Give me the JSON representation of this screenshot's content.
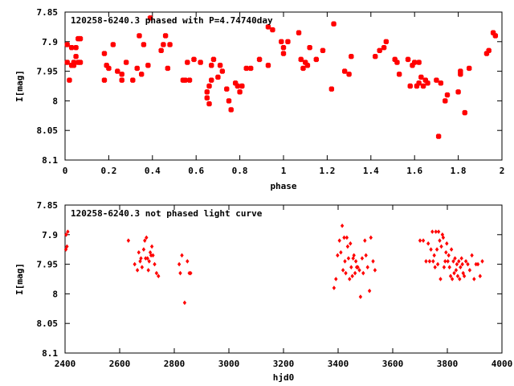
{
  "chart_data": [
    {
      "type": "scatter",
      "title": "120258-6240.3 phased with P=4.74740day",
      "xlabel": "phase",
      "ylabel": "I[mag]",
      "xlim": [
        0,
        2
      ],
      "ylim": [
        8.1,
        7.85
      ],
      "y_inverted": true,
      "xticks": [
        0,
        0.2,
        0.4,
        0.6,
        0.8,
        1,
        1.2,
        1.4,
        1.6,
        1.8,
        2
      ],
      "xtick_labels": [
        "0",
        "0.2",
        "0.4",
        "0.6",
        "0.8",
        "1",
        "1.2",
        "1.4",
        "1.6",
        "1.8",
        "2"
      ],
      "yticks": [
        7.85,
        7.9,
        7.95,
        8,
        8.05,
        8.1
      ],
      "ytick_labels": [
        "7.85",
        "7.9",
        "7.95",
        "8",
        "8.05",
        "8.1"
      ],
      "grid": false,
      "marker_color": "#ff0000",
      "x": [
        0.01,
        0.01,
        0.02,
        0.03,
        0.03,
        0.04,
        0.04,
        0.05,
        0.05,
        0.06,
        0.06,
        0.07,
        0.07,
        0.18,
        0.18,
        0.19,
        0.2,
        0.22,
        0.24,
        0.26,
        0.26,
        0.28,
        0.31,
        0.33,
        0.34,
        0.35,
        0.36,
        0.38,
        0.39,
        0.44,
        0.45,
        0.46,
        0.47,
        0.48,
        0.54,
        0.55,
        0.56,
        0.57,
        0.59,
        0.62,
        0.65,
        0.65,
        0.66,
        0.66,
        0.67,
        0.67,
        0.68,
        0.7,
        0.71,
        0.72,
        0.74,
        0.75,
        0.76,
        0.78,
        0.79,
        0.8,
        0.81,
        0.83,
        0.85,
        0.89,
        0.93,
        0.93,
        0.95,
        0.99,
        1.0,
        1.0,
        1.02,
        1.07,
        1.08,
        1.09,
        1.1,
        1.11,
        1.12,
        1.15,
        1.18,
        1.22,
        1.23,
        1.28,
        1.3,
        1.31,
        1.42,
        1.44,
        1.46,
        1.47,
        1.51,
        1.52,
        1.53,
        1.57,
        1.58,
        1.59,
        1.6,
        1.61,
        1.62,
        1.62,
        1.63,
        1.64,
        1.65,
        1.66,
        1.7,
        1.71,
        1.72,
        1.74,
        1.75,
        1.8,
        1.81,
        1.81,
        1.83,
        1.85,
        1.93,
        1.94,
        1.96,
        1.97
      ],
      "y": [
        7.905,
        7.935,
        7.965,
        7.91,
        7.94,
        7.935,
        7.94,
        7.925,
        7.91,
        7.895,
        7.935,
        7.895,
        7.935,
        7.92,
        7.965,
        7.94,
        7.945,
        7.905,
        7.95,
        7.965,
        7.955,
        7.935,
        7.965,
        7.945,
        7.89,
        7.955,
        7.905,
        7.94,
        7.86,
        7.915,
        7.905,
        7.89,
        7.945,
        7.905,
        7.965,
        7.965,
        7.935,
        7.965,
        7.93,
        7.935,
        7.995,
        7.985,
        7.975,
        8.005,
        7.965,
        7.94,
        7.93,
        7.96,
        7.94,
        7.95,
        7.98,
        8.0,
        8.015,
        7.97,
        7.975,
        7.985,
        7.975,
        7.945,
        7.945,
        7.93,
        7.875,
        7.94,
        7.88,
        7.9,
        7.91,
        7.92,
        7.9,
        7.885,
        7.93,
        7.945,
        7.935,
        7.94,
        7.91,
        7.93,
        7.915,
        7.98,
        7.87,
        7.95,
        7.955,
        7.925,
        7.925,
        7.915,
        7.91,
        7.9,
        7.93,
        7.935,
        7.955,
        7.93,
        7.975,
        7.94,
        7.935,
        7.975,
        7.97,
        7.935,
        7.96,
        7.975,
        7.965,
        7.97,
        7.965,
        8.06,
        7.97,
        8.0,
        7.99,
        7.985,
        7.95,
        7.955,
        8.02,
        7.945,
        7.92,
        7.915,
        7.885,
        7.89
      ]
    },
    {
      "type": "scatter",
      "title": "120258-6240.3 not phased light curve",
      "xlabel": "hjd0",
      "ylabel": "I[mag]",
      "xlim": [
        2400,
        4000
      ],
      "ylim": [
        8.1,
        7.85
      ],
      "y_inverted": true,
      "xticks": [
        2400,
        2600,
        2800,
        3000,
        3200,
        3400,
        3600,
        3800,
        4000
      ],
      "xtick_labels": [
        "2400",
        "2600",
        "2800",
        "3000",
        "3200",
        "3400",
        "3600",
        "3800",
        "4000"
      ],
      "yticks": [
        7.85,
        7.9,
        7.95,
        8,
        8.05,
        8.1
      ],
      "ytick_labels": [
        "7.85",
        "7.9",
        "7.95",
        "8",
        "8.05",
        "8.1"
      ],
      "grid": false,
      "marker_color": "#ff0000",
      "x": [
        2403,
        2404,
        2407,
        2410,
        2632,
        2655,
        2665,
        2670,
        2675,
        2678,
        2682,
        2688,
        2692,
        2695,
        2698,
        2702,
        2705,
        2708,
        2712,
        2715,
        2718,
        2722,
        2728,
        2735,
        2742,
        2818,
        2822,
        2828,
        2838,
        2848,
        2855,
        2860,
        3385,
        3392,
        3398,
        3405,
        3410,
        3415,
        3418,
        3422,
        3425,
        3428,
        3432,
        3435,
        3438,
        3442,
        3445,
        3448,
        3452,
        3455,
        3458,
        3462,
        3465,
        3468,
        3472,
        3478,
        3482,
        3488,
        3492,
        3498,
        3502,
        3508,
        3515,
        3520,
        3528,
        3535,
        3700,
        3712,
        3722,
        3730,
        3735,
        3740,
        3745,
        3748,
        3752,
        3755,
        3758,
        3762,
        3765,
        3768,
        3772,
        3775,
        3778,
        3782,
        3785,
        3788,
        3792,
        3795,
        3798,
        3802,
        3805,
        3808,
        3812,
        3815,
        3818,
        3822,
        3825,
        3828,
        3832,
        3835,
        3838,
        3842,
        3845,
        3848,
        3852,
        3855,
        3858,
        3862,
        3868,
        3875,
        3882,
        3890,
        3898,
        3905,
        3912,
        3920,
        3928
      ],
      "y": [
        7.925,
        7.9,
        7.92,
        7.895,
        7.91,
        7.95,
        7.96,
        7.93,
        7.945,
        7.94,
        7.955,
        7.925,
        7.91,
        7.94,
        7.905,
        7.94,
        7.96,
        7.945,
        7.93,
        7.935,
        7.92,
        7.935,
        7.95,
        7.965,
        7.97,
        7.95,
        7.965,
        7.935,
        8.015,
        7.945,
        7.965,
        7.965,
        7.99,
        7.975,
        7.935,
        7.91,
        7.93,
        7.885,
        7.96,
        7.905,
        7.945,
        7.965,
        7.905,
        7.92,
        7.94,
        7.975,
        7.915,
        7.955,
        7.97,
        7.94,
        7.935,
        7.965,
        7.945,
        7.955,
        7.955,
        7.96,
        8.005,
        7.94,
        7.965,
        7.91,
        7.935,
        7.955,
        7.995,
        7.905,
        7.945,
        7.96,
        7.91,
        7.91,
        7.945,
        7.915,
        7.945,
        7.925,
        7.895,
        7.945,
        7.935,
        7.955,
        7.895,
        7.925,
        7.95,
        7.895,
        7.91,
        7.975,
        7.92,
        7.9,
        7.905,
        7.955,
        7.945,
        7.93,
        7.915,
        7.945,
        7.935,
        7.955,
        7.97,
        7.925,
        7.975,
        7.945,
        7.965,
        7.94,
        7.96,
        7.95,
        7.97,
        7.945,
        7.975,
        7.955,
        7.94,
        7.95,
        7.965,
        7.97,
        7.945,
        7.95,
        7.96,
        7.935,
        7.975,
        7.95,
        7.95,
        7.97,
        7.945
      ]
    }
  ]
}
